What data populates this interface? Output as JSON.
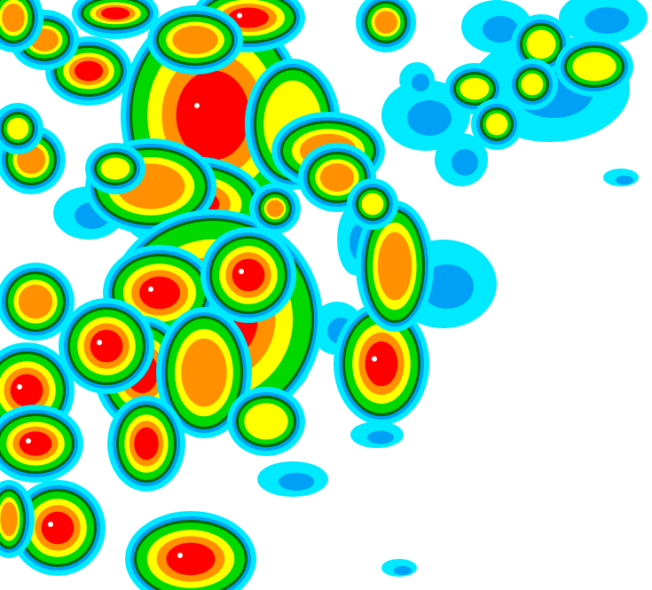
{
  "map": {
    "type": "weather-radar-reflectivity",
    "background": "#ffffff",
    "palette": {
      "light_cyan": "#00eaff",
      "blue": "#00a0f6",
      "green": "#00d800",
      "dark_green": "#006400",
      "yellow": "#ffff00",
      "orange": "#ff9000",
      "red": "#ff0000",
      "white_core": "#ffffff"
    }
  }
}
